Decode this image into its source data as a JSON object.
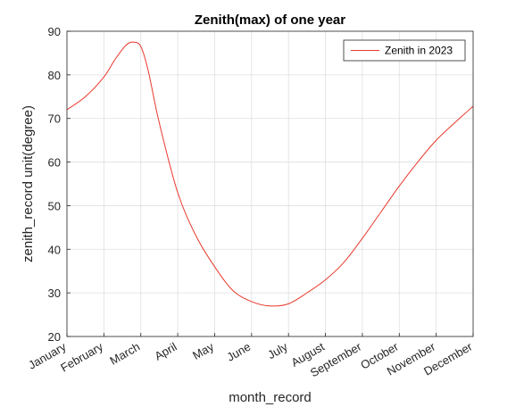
{
  "chart_data": {
    "type": "line",
    "title": "Zenith(max) of one year",
    "xlabel": "month_record",
    "ylabel": "zenith_record unit(degree)",
    "ylim": [
      20,
      90
    ],
    "yticks": [
      20,
      30,
      40,
      50,
      60,
      70,
      80,
      90
    ],
    "categories": [
      "January",
      "February",
      "March",
      "April",
      "May",
      "June",
      "July",
      "August",
      "September",
      "October",
      "November",
      "December"
    ],
    "grid": true,
    "legend_position": "top-right",
    "series": [
      {
        "name": "Zenith in 2023",
        "color": "#e8392c",
        "x": [
          1,
          1.5,
          2,
          2.3,
          2.6,
          2.8,
          3.0,
          3.2,
          3.5,
          4.0,
          4.5,
          5.0,
          5.5,
          6.0,
          6.5,
          7.0,
          7.5,
          8.0,
          8.5,
          9.0,
          9.5,
          10.0,
          10.5,
          11.0,
          11.5,
          12.0
        ],
        "values": [
          72,
          75,
          79.5,
          83.5,
          86.8,
          87.5,
          86.5,
          81,
          69,
          53,
          43,
          36,
          30.5,
          28,
          27,
          27.5,
          30,
          33,
          37,
          42.5,
          48.5,
          54.5,
          60,
          65,
          69,
          72.8
        ]
      }
    ]
  }
}
